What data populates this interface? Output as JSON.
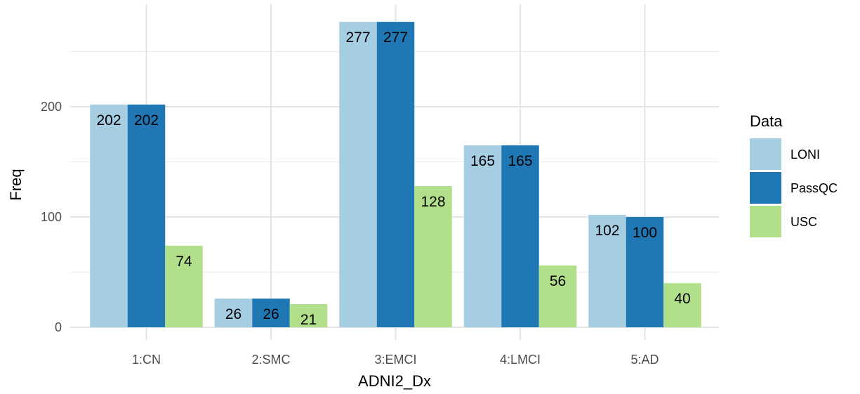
{
  "chart_data": {
    "type": "bar",
    "title": "",
    "xlabel": "ADNI2_Dx",
    "ylabel": "Freq",
    "ylim": [
      0,
      280
    ],
    "yticks": [
      0,
      100,
      200
    ],
    "grid": true,
    "legend_title": "Data",
    "legend_position": "right",
    "categories": [
      "1:CN",
      "2:SMC",
      "3:EMCI",
      "4:LMCI",
      "5:AD"
    ],
    "series": [
      {
        "name": "LONI",
        "color": "#a6cee3",
        "values": [
          202,
          26,
          277,
          165,
          102
        ]
      },
      {
        "name": "PassQC",
        "color": "#1f78b4",
        "values": [
          202,
          26,
          277,
          165,
          100
        ]
      },
      {
        "name": "USC",
        "color": "#b2df8a",
        "values": [
          74,
          21,
          128,
          56,
          40
        ]
      }
    ]
  }
}
